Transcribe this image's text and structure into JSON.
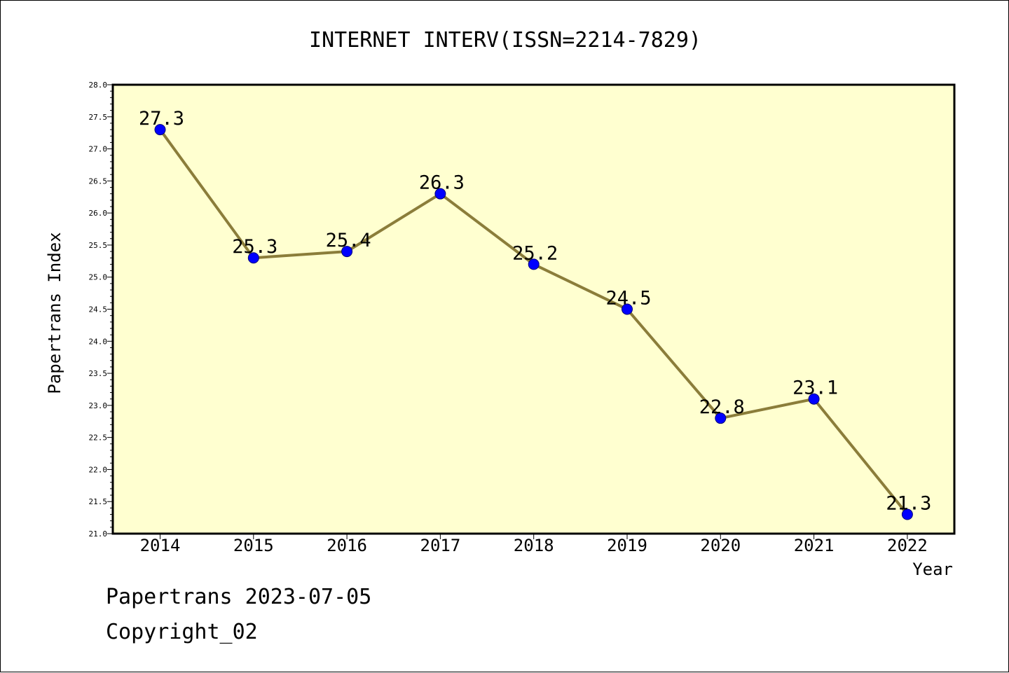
{
  "chart_data": {
    "type": "line",
    "title": "INTERNET INTERV(ISSN=2214-7829)",
    "xlabel": "Year",
    "ylabel": "Papertrans Index",
    "x": [
      "2014",
      "2015",
      "2016",
      "2017",
      "2018",
      "2019",
      "2020",
      "2021",
      "2022"
    ],
    "series": [
      {
        "values": [
          27.3,
          25.3,
          25.4,
          26.3,
          25.2,
          24.5,
          22.8,
          23.1,
          21.3
        ]
      }
    ],
    "data_labels": [
      "27.3",
      "25.3",
      "25.4",
      "26.3",
      "25.2",
      "24.5",
      "22.8",
      "23.1",
      "21.3"
    ],
    "ylim": [
      21.0,
      28.0
    ],
    "yticks": [
      "21.0",
      "21.5",
      "22.0",
      "22.5",
      "23.0",
      "23.5",
      "24.0",
      "24.5",
      "25.0",
      "25.5",
      "26.0",
      "26.5",
      "27.0",
      "27.5",
      "28.0"
    ],
    "grid": false,
    "colors": {
      "plot_background": "#FFFFD0",
      "line": "#8B7D3A",
      "marker": "#0000FF"
    }
  },
  "footer": {
    "line1": "Papertrans 2023-07-05",
    "line2": "Copyright_02"
  }
}
